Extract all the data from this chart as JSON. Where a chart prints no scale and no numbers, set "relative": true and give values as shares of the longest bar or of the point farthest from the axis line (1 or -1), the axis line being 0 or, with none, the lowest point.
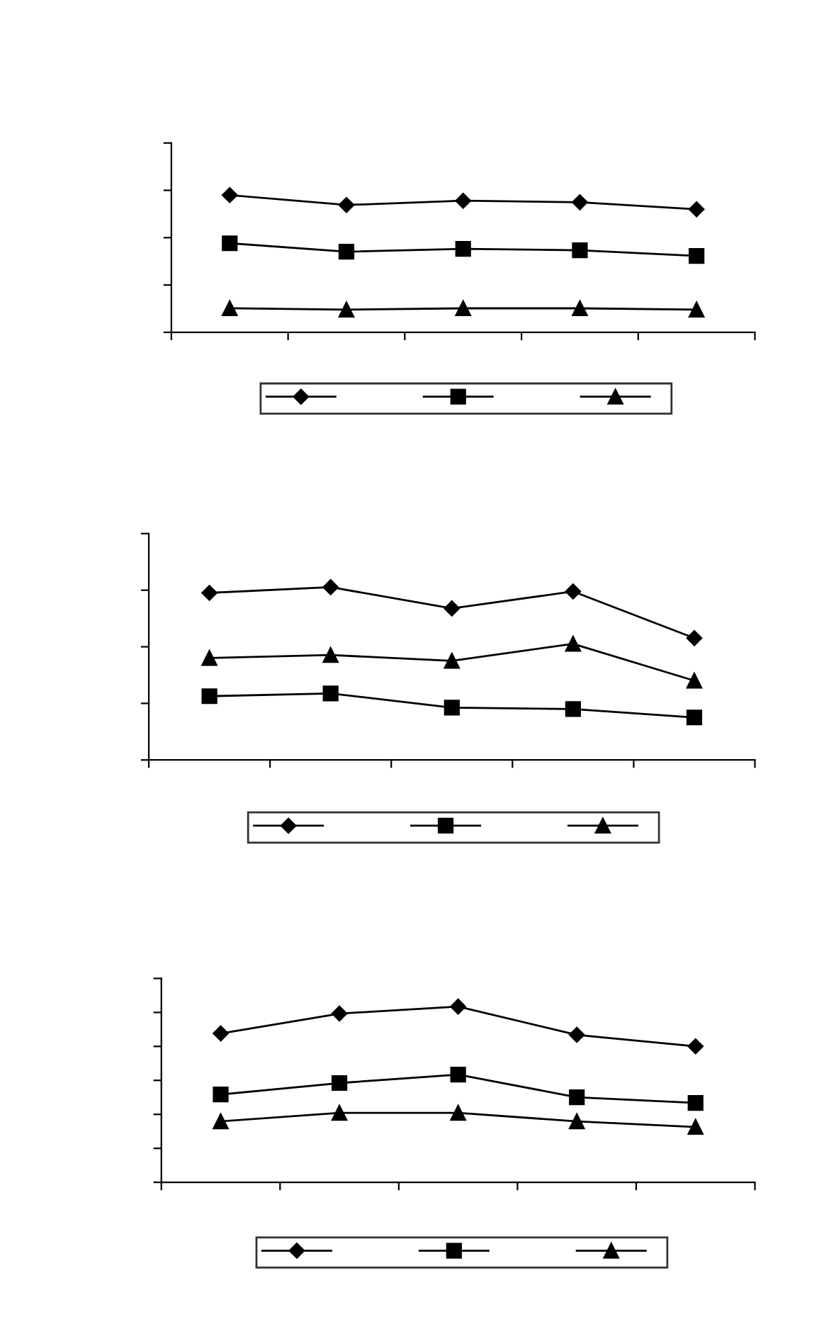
{
  "chart_data": [
    {
      "type": "line",
      "relative": true,
      "categories": [
        null,
        null,
        null,
        null,
        null
      ],
      "grid": false,
      "series": [
        {
          "color": "#000000",
          "marker": "diamond",
          "values": [
            1,
            0.928,
            0.959,
            0.948,
            0.897
          ]
        },
        {
          "color": "#000000",
          "marker": "square",
          "values": [
            0.649,
            0.588,
            0.608,
            0.598,
            0.557
          ]
        },
        {
          "color": "#000000",
          "marker": "triangle",
          "values": [
            0.175,
            0.165,
            0.175,
            0.175,
            0.165
          ]
        }
      ]
    },
    {
      "type": "line",
      "relative": true,
      "categories": [
        null,
        null,
        null,
        null,
        null
      ],
      "grid": false,
      "series": [
        {
          "color": "#000000",
          "marker": "diamond",
          "values": [
            0.967,
            1,
            0.877,
            0.975,
            0.705
          ]
        },
        {
          "color": "#000000",
          "marker": "square",
          "values": [
            0.369,
            0.385,
            0.303,
            0.295,
            0.246
          ]
        },
        {
          "color": "#000000",
          "marker": "triangle",
          "values": [
            0.59,
            0.607,
            0.574,
            0.672,
            0.459
          ]
        }
      ]
    },
    {
      "type": "line",
      "relative": true,
      "categories": [
        null,
        null,
        null,
        null,
        null
      ],
      "grid": false,
      "series": [
        {
          "color": "#000000",
          "marker": "diamond",
          "values": [
            0.847,
            0.96,
            1,
            0.839,
            0.774
          ]
        },
        {
          "color": "#000000",
          "marker": "square",
          "values": [
            0.5,
            0.565,
            0.613,
            0.484,
            0.452
          ]
        },
        {
          "color": "#000000",
          "marker": "triangle",
          "values": [
            0.347,
            0.395,
            0.395,
            0.347,
            0.315
          ]
        }
      ]
    }
  ]
}
